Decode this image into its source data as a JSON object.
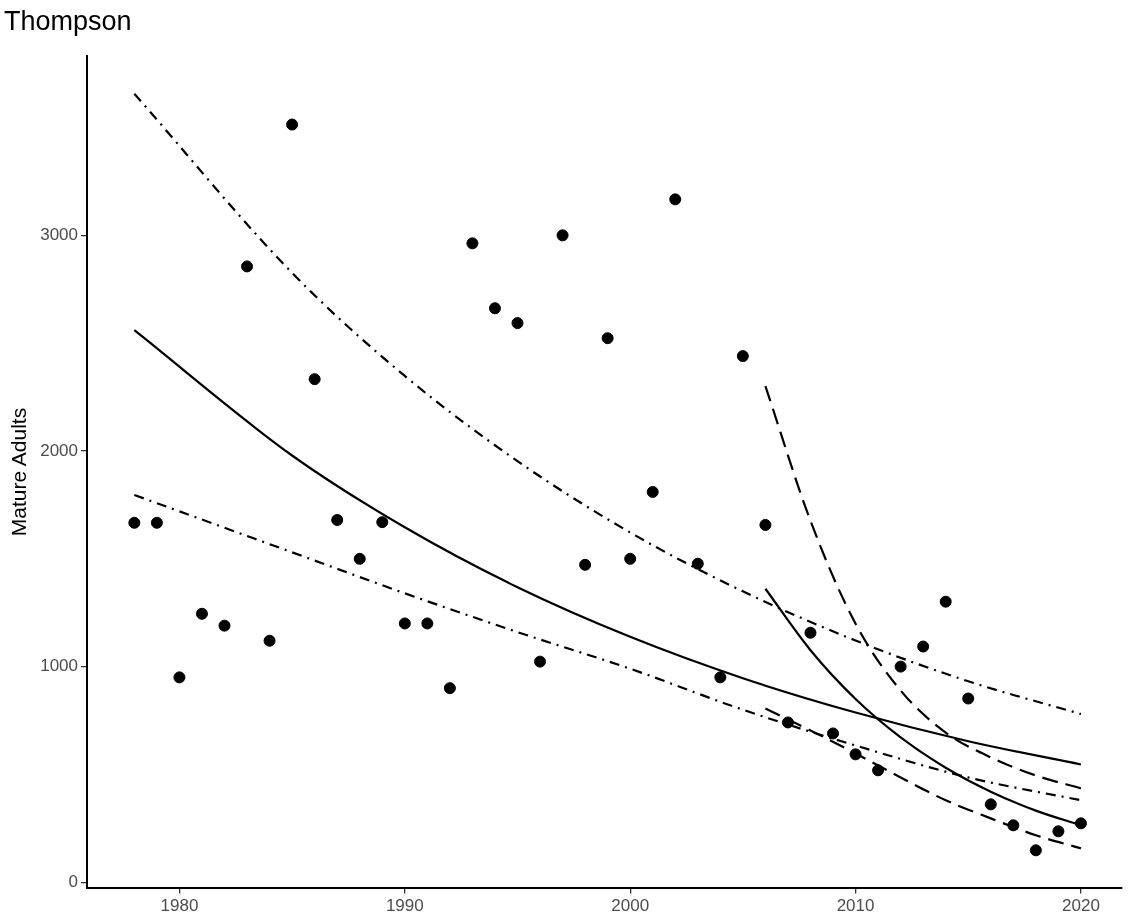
{
  "chart_data": {
    "type": "scatter",
    "title": "Thompson",
    "ylabel": "Mature Adults",
    "xlim": [
      1975.9,
      2021.8
    ],
    "xticks": [
      1980,
      1990,
      2000,
      2010,
      2020
    ],
    "ylim": [
      -25,
      3830
    ],
    "yticks": [
      0,
      1000,
      2000,
      3000
    ],
    "grid": false,
    "legend": false,
    "marker": "circle",
    "series": [
      {
        "color": "#000000",
        "x": [
          1978,
          1979,
          1980,
          1981,
          1982,
          1983,
          1984,
          1985,
          1986,
          1987,
          1988,
          1989,
          1990,
          1991,
          1992,
          1993,
          1994,
          1995,
          1996,
          1997,
          1998,
          1999,
          2000,
          2001,
          2002,
          2003,
          2004,
          2005,
          2006,
          2007,
          2008,
          2009,
          2010,
          2011,
          2012,
          2013,
          2014,
          2015,
          2016,
          2017,
          2018,
          2019,
          2020
        ],
        "values": [
          1667,
          1667,
          950,
          1245,
          1190,
          2856,
          1120,
          3514,
          2333,
          1680,
          1500,
          1670,
          1200,
          1200,
          900,
          2963,
          2662,
          2593,
          1023,
          3000,
          1472,
          2523,
          1500,
          1810,
          3167,
          1477,
          950,
          2440,
          1657,
          741,
          1157,
          690,
          593,
          519,
          1000,
          1093,
          1301,
          852,
          361,
          264,
          148,
          236,
          273
        ]
      },
      {
        "type": "line",
        "color": "#000000",
        "line_style": "solid",
        "marker": "none",
        "x": [
          1978,
          1985,
          1990,
          1995,
          2000,
          2005,
          2010,
          2015,
          2020
        ],
        "values": [
          2560,
          1979,
          1646,
          1368,
          1138,
          946,
          787,
          654,
          546
        ]
      },
      {
        "type": "line",
        "color": "#000000",
        "line_style": "dashdot",
        "marker": "none",
        "x": [
          1978,
          1985,
          1990,
          1995,
          2000,
          2005,
          2010,
          2015,
          2020
        ],
        "values": [
          3657,
          2826,
          2348,
          1953,
          1622,
          1349,
          1121,
          932,
          780
        ]
      },
      {
        "type": "line",
        "color": "#000000",
        "line_style": "dashdot",
        "marker": "none",
        "x": [
          1978,
          1985,
          1990,
          1995,
          2000,
          2005,
          2010,
          2015,
          2020
        ],
        "values": [
          1796,
          1530,
          1340,
          1160,
          990,
          800,
          634,
          486,
          380
        ]
      },
      {
        "type": "line",
        "color": "#000000",
        "line_style": "solid",
        "marker": "none",
        "x": [
          2006,
          2008,
          2010,
          2012,
          2014,
          2016,
          2018,
          2020
        ],
        "values": [
          1361,
          1076,
          850,
          672,
          531,
          420,
          332,
          264
        ]
      },
      {
        "type": "line",
        "color": "#000000",
        "line_style": "dashed",
        "marker": "none",
        "x": [
          2006,
          2008,
          2010,
          2012,
          2014,
          2016,
          2018,
          2020
        ],
        "values": [
          2301,
          1676,
          1199,
          889,
          694,
          579,
          495,
          435
        ]
      },
      {
        "type": "line",
        "color": "#000000",
        "line_style": "dashed",
        "marker": "none",
        "x": [
          2006,
          2008,
          2010,
          2012,
          2014,
          2016,
          2018,
          2020
        ],
        "values": [
          806,
          704,
          597,
          486,
          380,
          296,
          218,
          157
        ]
      }
    ]
  }
}
